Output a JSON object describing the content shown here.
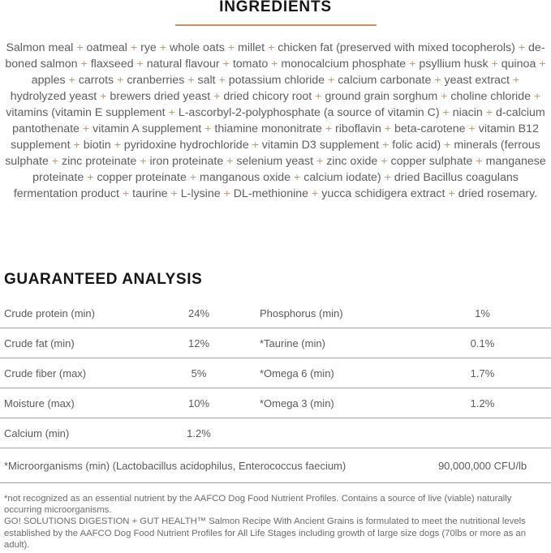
{
  "accent_color": "#c78e66",
  "plus_color": "#c09a6c",
  "ingredients": {
    "title": "INGREDIENTS",
    "text": "Salmon meal + oatmeal + rye + whole oats + millet + chicken fat (preserved with mixed tocopherols) + de-boned salmon + flaxseed + natural flavour + tomato + monocalcium phosphate + psyllium husk + quinoa + apples + carrots + cranberries + salt + potassium chloride + calcium carbonate + yeast extract + hydrolyzed yeast + brewers dried yeast + dried chicory root + ground grain sorghum + choline chloride + vitamins (vitamin E supplement + L-ascorbyl-2-polyphosphate (a source of vitamin C) + niacin + d-calcium pantothenate + vitamin A supplement + thiamine mononitrate + riboflavin + beta-carotene + vitamin B12 supplement + biotin + pyridoxine hydrochloride + vitamin D3 supplement + folic acid) + minerals (ferrous sulphate + zinc proteinate + iron proteinate + selenium yeast + zinc oxide + copper sulphate + manganese proteinate + copper proteinate + manganous oxide + calcium iodate) + dried Bacillus coagulans fermentation product + taurine + L-lysine + DL-methionine + yucca schidigera extract + dried rosemary."
  },
  "analysis": {
    "title": "GUARANTEED ANALYSIS",
    "rows": [
      {
        "left_label": "Crude protein (min)",
        "left_value": "24%",
        "right_label": "Phosphorus (min)",
        "right_value": "1%"
      },
      {
        "left_label": "Crude fat (min)",
        "left_value": "12%",
        "right_label": "*Taurine (min)",
        "right_value": "0.1%"
      },
      {
        "left_label": "Crude fiber (max)",
        "left_value": "5%",
        "right_label": "*Omega 6 (min)",
        "right_value": "1.7%"
      },
      {
        "left_label": "Moisture (max)",
        "left_value": "10%",
        "right_label": "*Omega 3 (min)",
        "right_value": "1.2%"
      },
      {
        "left_label": "Calcium (min)",
        "left_value": "1.2%",
        "right_label": "",
        "right_value": ""
      }
    ],
    "microorganisms": {
      "label": "*Microorganisms (min) (Lactobacillus acidophilus, Enterococcus faecium)",
      "value": "90,000,000 CFU/lb"
    }
  },
  "footnote": "*not recognized as an essential nutrient by the AAFCO Dog Food Nutrient Profiles. Contains a source of live (viable) naturally occurring microorganisms.",
  "disclaimer": "GO! SOLUTIONS DIGESTION + GUT HEALTH™ Salmon Recipe With Ancient Grains is formulated to meet the nutritional levels established by the AAFCO Dog Food Nutrient Profiles for All Life Stages including growth of large size dogs (70lbs or more as an adult)."
}
